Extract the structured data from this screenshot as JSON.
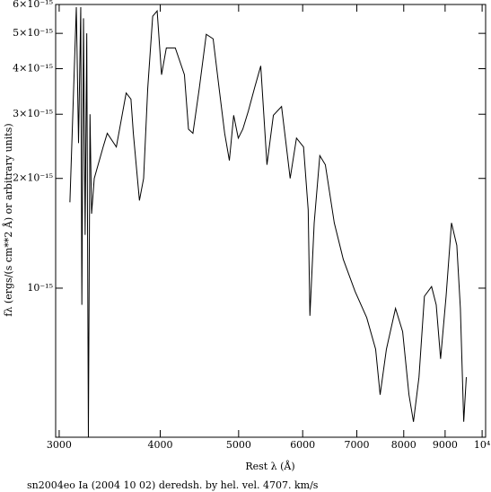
{
  "chart_data": {
    "type": "line",
    "caption": "sn2004eo Ia (2004 10 02) deredsh. by hel. vel.  4707. km/s",
    "x_label": "Rest λ (Å)",
    "y_label": "fλ (ergs/(s cm**2 Å) or arbitrary units)",
    "x_log": true,
    "y_log": true,
    "color": "#000000",
    "xlim": [
      2970,
      10100
    ],
    "ylim": [
      3.9e-16,
      6e-15
    ],
    "xticks": [
      3000,
      4000,
      5000,
      6000,
      7000,
      8000,
      9000,
      {
        "value": 10000,
        "label": "10⁴"
      }
    ],
    "yticks": [
      {
        "value": 1e-15,
        "label": "10⁻¹⁵"
      },
      {
        "value": 2e-15,
        "label": "2×10⁻¹⁵"
      },
      {
        "value": 3e-15,
        "label": "3×10⁻¹⁵"
      },
      {
        "value": 4e-15,
        "label": "4×10⁻¹⁵"
      },
      {
        "value": 5e-15,
        "label": "5×10⁻¹⁵"
      },
      {
        "value": 6e-15,
        "label": "6×10⁻¹⁵"
      }
    ],
    "x": [
      3093,
      3150,
      3170,
      3190,
      3200,
      3215,
      3230,
      3245,
      3260,
      3275,
      3290,
      3315,
      3400,
      3440,
      3530,
      3630,
      3680,
      3705,
      3770,
      3815,
      3860,
      3915,
      3965,
      4015,
      4070,
      4175,
      4285,
      4335,
      4390,
      4470,
      4560,
      4650,
      4730,
      4805,
      4870,
      4930,
      4995,
      5060,
      5140,
      5230,
      5325,
      5420,
      5520,
      5650,
      5720,
      5790,
      5895,
      6015,
      6095,
      6125,
      6200,
      6300,
      6400,
      6565,
      6735,
      6965,
      7200,
      7385,
      7480,
      7615,
      7815,
      7975,
      8120,
      8225,
      8355,
      8485,
      8660,
      8775,
      8885,
      9025,
      9165,
      9305,
      9400,
      9490,
      9560
    ],
    "values": [
      1.72e-15,
      5.9e-15,
      2.5e-15,
      5.9e-15,
      9e-16,
      5.5e-15,
      1.4e-15,
      5e-15,
      3.9e-16,
      3e-15,
      1.6e-15,
      2e-15,
      2.44e-15,
      2.66e-15,
      2.44e-15,
      3.43e-15,
      3.3e-15,
      2.66e-15,
      1.74e-15,
      2e-15,
      3.53e-15,
      5.57e-15,
      5.76e-15,
      3.85e-15,
      4.56e-15,
      4.56e-15,
      3.85e-15,
      2.73e-15,
      2.66e-15,
      3.53e-15,
      4.97e-15,
      4.83e-15,
      3.53e-15,
      2.66e-15,
      2.24e-15,
      2.98e-15,
      2.58e-15,
      2.73e-15,
      3.06e-15,
      3.53e-15,
      4.07e-15,
      2.18e-15,
      2.98e-15,
      3.15e-15,
      2.51e-15,
      2e-15,
      2.58e-15,
      2.44e-15,
      1.64e-15,
      8.4e-16,
      1.51e-15,
      2.31e-15,
      2.18e-15,
      1.51e-15,
      1.2e-15,
      9.8e-16,
      8.3e-16,
      6.8e-16,
      5.1e-16,
      6.8e-16,
      8.8e-16,
      7.6e-16,
      5.1e-16,
      4.3e-16,
      5.7e-16,
      9.5e-16,
      1.01e-15,
      9e-16,
      6.4e-16,
      9.5e-16,
      1.51e-15,
      1.31e-15,
      8.8e-16,
      4.3e-16,
      5.7e-16
    ]
  }
}
